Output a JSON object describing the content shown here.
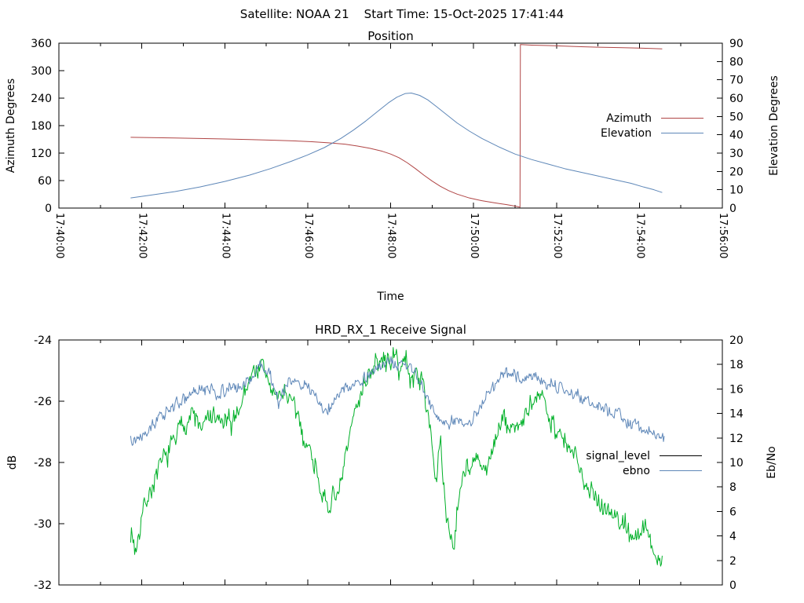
{
  "window": {
    "background": "#ffffff"
  },
  "header": {
    "title": "Satellite: NOAA 21    Start Time: 15-Oct-2025 17:41:44"
  },
  "colors": {
    "azimuth": "#b04545",
    "elevation": "#5e87b8",
    "signal_level_trace": "#00b028",
    "signal_level_key": "#000000",
    "ebno": "#5e87b8",
    "axis": "#000000"
  },
  "chart_data": [
    {
      "type": "line",
      "title": "Position",
      "xlabel": "Time",
      "ylabel": "Azimuth Degrees",
      "y2label": "Elevation Degrees",
      "x_unit": "minutes_after_17:40:00",
      "x_range_minutes": [
        0,
        16
      ],
      "x_major_step_minutes": 2,
      "x_minor_step_minutes": 1,
      "x_tick_labels": [
        "17:40:00",
        "17:42:00",
        "17:44:00",
        "17:46:00",
        "17:48:00",
        "17:50:00",
        "17:52:00",
        "17:54:00",
        "17:56:00"
      ],
      "ylim": [
        0,
        360
      ],
      "y_ticks": [
        0,
        60,
        120,
        180,
        240,
        300,
        360
      ],
      "y2lim": [
        0,
        90
      ],
      "y2_ticks": [
        0,
        10,
        20,
        30,
        40,
        50,
        60,
        70,
        80,
        90
      ],
      "grid": false,
      "legend_position": "inside-right",
      "legend": [
        {
          "label": "Azimuth",
          "color": "#b04545"
        },
        {
          "label": "Elevation",
          "color": "#5e87b8"
        }
      ],
      "series": [
        {
          "name": "Azimuth",
          "axis": "y1",
          "color": "#b04545",
          "style": "smooth",
          "points": [
            [
              1.73,
              154.5
            ],
            [
              2.2,
              153.8
            ],
            [
              2.8,
              153.0
            ],
            [
              3.4,
              152.0
            ],
            [
              4.0,
              150.8
            ],
            [
              4.6,
              149.5
            ],
            [
              5.2,
              148.0
            ],
            [
              5.7,
              146.5
            ],
            [
              6.1,
              144.8
            ],
            [
              6.5,
              142.5
            ],
            [
              6.9,
              139.5
            ],
            [
              7.2,
              135.5
            ],
            [
              7.5,
              130.5
            ],
            [
              7.8,
              124.0
            ],
            [
              8.0,
              118.0
            ],
            [
              8.2,
              110.0
            ],
            [
              8.4,
              99.0
            ],
            [
              8.6,
              86.0
            ],
            [
              8.8,
              72.0
            ],
            [
              9.0,
              59.0
            ],
            [
              9.2,
              47.5
            ],
            [
              9.4,
              38.0
            ],
            [
              9.6,
              30.5
            ],
            [
              9.9,
              22.0
            ],
            [
              10.2,
              16.0
            ],
            [
              10.5,
              11.5
            ],
            [
              10.8,
              7.5
            ],
            [
              11.05,
              3.5
            ],
            [
              11.12,
              1.8
            ],
            [
              11.13,
              357.0
            ],
            [
              11.4,
              355.8
            ],
            [
              11.8,
              354.8
            ],
            [
              12.2,
              353.5
            ],
            [
              12.6,
              352.3
            ],
            [
              13.0,
              351.3
            ],
            [
              13.5,
              350.3
            ],
            [
              14.0,
              349.2
            ],
            [
              14.3,
              348.5
            ],
            [
              14.55,
              347.5
            ]
          ]
        },
        {
          "name": "Elevation",
          "axis": "y2",
          "color": "#5e87b8",
          "style": "smooth",
          "points": [
            [
              1.73,
              5.5
            ],
            [
              2.2,
              7.0
            ],
            [
              2.8,
              9.0
            ],
            [
              3.4,
              11.5
            ],
            [
              4.0,
              14.5
            ],
            [
              4.6,
              18.0
            ],
            [
              5.1,
              21.5
            ],
            [
              5.6,
              25.5
            ],
            [
              6.0,
              29.0
            ],
            [
              6.4,
              33.0
            ],
            [
              6.8,
              38.0
            ],
            [
              7.1,
              42.5
            ],
            [
              7.4,
              47.5
            ],
            [
              7.7,
              53.0
            ],
            [
              7.95,
              57.5
            ],
            [
              8.15,
              60.5
            ],
            [
              8.35,
              62.5
            ],
            [
              8.5,
              62.8
            ],
            [
              8.7,
              61.5
            ],
            [
              8.9,
              59.0
            ],
            [
              9.1,
              55.5
            ],
            [
              9.35,
              51.0
            ],
            [
              9.6,
              46.5
            ],
            [
              9.9,
              42.0
            ],
            [
              10.2,
              38.0
            ],
            [
              10.6,
              33.5
            ],
            [
              11.0,
              29.5
            ],
            [
              11.4,
              26.5
            ],
            [
              11.8,
              24.0
            ],
            [
              12.2,
              21.5
            ],
            [
              12.6,
              19.5
            ],
            [
              13.0,
              17.5
            ],
            [
              13.4,
              15.5
            ],
            [
              13.8,
              13.5
            ],
            [
              14.1,
              11.5
            ],
            [
              14.35,
              10.0
            ],
            [
              14.55,
              8.5
            ]
          ]
        }
      ]
    },
    {
      "type": "line",
      "title": "HRD_RX_1 Receive Signal",
      "xlabel": "",
      "ylabel": "dB",
      "y2label": "Eb/No",
      "x_unit": "minutes_after_17:40:00",
      "x_range_minutes": [
        0,
        16
      ],
      "x_major_step_minutes": 2,
      "x_minor_step_minutes": 1,
      "x_tick_labels": [],
      "ylim": [
        -32,
        -24
      ],
      "y_ticks": [
        -32,
        -30,
        -28,
        -26,
        -24
      ],
      "y2lim": [
        0,
        20
      ],
      "y2_ticks": [
        0,
        2,
        4,
        6,
        8,
        10,
        12,
        14,
        16,
        18,
        20
      ],
      "grid": false,
      "legend_position": "inside-right",
      "legend": [
        {
          "label": "signal_level",
          "color": "#000000"
        },
        {
          "label": "ebno",
          "color": "#5e87b8"
        }
      ],
      "series": [
        {
          "name": "signal_level",
          "axis": "y1",
          "color": "#00b028",
          "style": "noisy",
          "noise_amp": 0.25,
          "seed": 7,
          "points": [
            [
              1.73,
              -30.2
            ],
            [
              1.85,
              -30.9
            ],
            [
              2.0,
              -29.6
            ],
            [
              2.2,
              -28.9
            ],
            [
              2.45,
              -28.2
            ],
            [
              2.7,
              -27.5
            ],
            [
              2.95,
              -26.8
            ],
            [
              3.2,
              -26.4
            ],
            [
              3.45,
              -26.9
            ],
            [
              3.65,
              -26.5
            ],
            [
              3.9,
              -26.7
            ],
            [
              4.15,
              -26.8
            ],
            [
              4.4,
              -26.0
            ],
            [
              4.65,
              -25.1
            ],
            [
              4.85,
              -24.8
            ],
            [
              5.05,
              -25.3
            ],
            [
              5.25,
              -26.0
            ],
            [
              5.45,
              -25.6
            ],
            [
              5.65,
              -26.2
            ],
            [
              5.9,
              -27.1
            ],
            [
              6.15,
              -27.9
            ],
            [
              6.35,
              -28.9
            ],
            [
              6.5,
              -29.9
            ],
            [
              6.62,
              -28.7
            ],
            [
              6.75,
              -29.3
            ],
            [
              6.9,
              -28.0
            ],
            [
              7.1,
              -26.6
            ],
            [
              7.3,
              -25.5
            ],
            [
              7.5,
              -25.0
            ],
            [
              7.7,
              -24.8
            ],
            [
              7.9,
              -24.7
            ],
            [
              8.05,
              -24.5
            ],
            [
              8.2,
              -24.9
            ],
            [
              8.35,
              -24.7
            ],
            [
              8.5,
              -25.3
            ],
            [
              8.65,
              -25.0
            ],
            [
              8.8,
              -25.6
            ],
            [
              8.95,
              -26.6
            ],
            [
              9.1,
              -28.9
            ],
            [
              9.2,
              -27.2
            ],
            [
              9.3,
              -29.3
            ],
            [
              9.42,
              -30.2
            ],
            [
              9.52,
              -30.7
            ],
            [
              9.65,
              -29.0
            ],
            [
              9.8,
              -28.0
            ],
            [
              9.95,
              -28.3
            ],
            [
              10.1,
              -27.9
            ],
            [
              10.3,
              -28.5
            ],
            [
              10.5,
              -27.2
            ],
            [
              10.7,
              -26.7
            ],
            [
              10.95,
              -26.9
            ],
            [
              11.2,
              -26.6
            ],
            [
              11.45,
              -26.2
            ],
            [
              11.65,
              -25.7
            ],
            [
              11.9,
              -26.6
            ],
            [
              12.15,
              -27.3
            ],
            [
              12.4,
              -27.8
            ],
            [
              12.65,
              -28.4
            ],
            [
              12.9,
              -29.0
            ],
            [
              13.15,
              -29.4
            ],
            [
              13.4,
              -29.8
            ],
            [
              13.65,
              -30.0
            ],
            [
              13.9,
              -30.5
            ],
            [
              14.1,
              -30.2
            ],
            [
              14.3,
              -30.6
            ],
            [
              14.45,
              -31.3
            ],
            [
              14.55,
              -30.9
            ]
          ]
        },
        {
          "name": "ebno",
          "axis": "y2",
          "color": "#5e87b8",
          "style": "noisy",
          "noise_amp": 0.33,
          "seed": 13,
          "points": [
            [
              1.73,
              12.2
            ],
            [
              1.85,
              11.9
            ],
            [
              2.1,
              12.8
            ],
            [
              2.4,
              13.6
            ],
            [
              2.7,
              14.4
            ],
            [
              3.0,
              15.1
            ],
            [
              3.3,
              15.7
            ],
            [
              3.6,
              16.0
            ],
            [
              3.85,
              15.7
            ],
            [
              4.1,
              15.9
            ],
            [
              4.4,
              16.2
            ],
            [
              4.7,
              17.2
            ],
            [
              4.9,
              17.9
            ],
            [
              5.1,
              17.1
            ],
            [
              5.3,
              14.9
            ],
            [
              5.5,
              16.3
            ],
            [
              5.75,
              16.8
            ],
            [
              6.0,
              16.2
            ],
            [
              6.25,
              15.0
            ],
            [
              6.45,
              14.1
            ],
            [
              6.6,
              14.9
            ],
            [
              6.85,
              15.8
            ],
            [
              7.1,
              16.4
            ],
            [
              7.4,
              17.0
            ],
            [
              7.7,
              17.6
            ],
            [
              7.95,
              18.2
            ],
            [
              8.15,
              17.7
            ],
            [
              8.4,
              17.9
            ],
            [
              8.6,
              17.4
            ],
            [
              8.85,
              15.6
            ],
            [
              9.1,
              13.6
            ],
            [
              9.35,
              13.1
            ],
            [
              9.6,
              13.3
            ],
            [
              9.85,
              13.0
            ],
            [
              10.05,
              13.9
            ],
            [
              10.25,
              15.1
            ],
            [
              10.45,
              16.2
            ],
            [
              10.65,
              16.9
            ],
            [
              10.9,
              17.2
            ],
            [
              11.15,
              17.0
            ],
            [
              11.45,
              17.1
            ],
            [
              11.7,
              16.6
            ],
            [
              11.95,
              16.3
            ],
            [
              12.2,
              15.9
            ],
            [
              12.5,
              15.4
            ],
            [
              12.8,
              15.0
            ],
            [
              13.1,
              14.6
            ],
            [
              13.4,
              14.1
            ],
            [
              13.7,
              13.5
            ],
            [
              13.95,
              13.0
            ],
            [
              14.2,
              12.6
            ],
            [
              14.4,
              12.1
            ],
            [
              14.6,
              12.2
            ]
          ]
        }
      ]
    }
  ]
}
